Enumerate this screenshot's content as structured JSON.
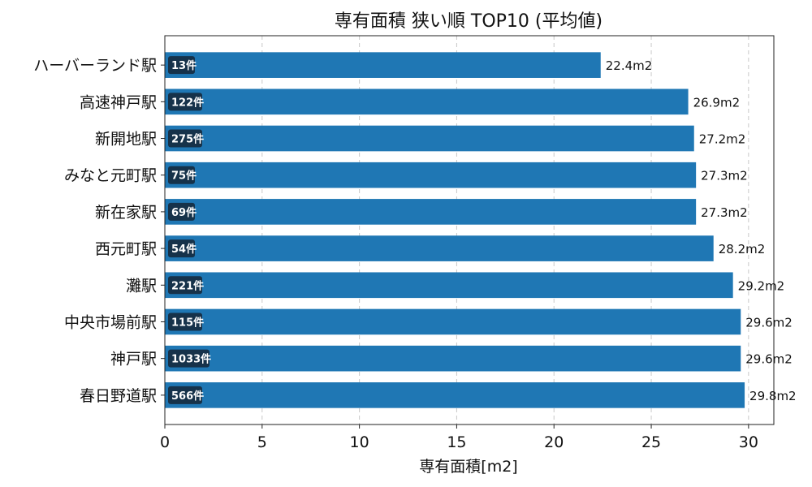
{
  "chart_data": {
    "type": "bar",
    "orientation": "horizontal",
    "title": "専有面積 狭い順 TOP10 (平均値)",
    "xlabel": "専有面積[m2]",
    "ylabel": "",
    "xlim": [
      0,
      31.3
    ],
    "xticks": [
      0,
      5,
      10,
      15,
      20,
      25,
      30
    ],
    "grid": "x-dashed",
    "bar_color": "#1f77b4",
    "count_badge_color": "#16324a",
    "categories": [
      "ハーバーランド駅",
      "高速神戸駅",
      "新開地駅",
      "みなと元町駅",
      "新在家駅",
      "西元町駅",
      "灘駅",
      "中央市場前駅",
      "神戸駅",
      "春日野道駅"
    ],
    "values": [
      22.4,
      26.9,
      27.2,
      27.3,
      27.3,
      28.2,
      29.2,
      29.6,
      29.6,
      29.8
    ],
    "value_labels": [
      "22.4m2",
      "26.9m2",
      "27.2m2",
      "27.3m2",
      "27.3m2",
      "28.2m2",
      "29.2m2",
      "29.6m2",
      "29.6m2",
      "29.8m2"
    ],
    "count_labels": [
      "13件",
      "122件",
      "275件",
      "75件",
      "69件",
      "54件",
      "221件",
      "115件",
      "1033件",
      "566件"
    ]
  }
}
